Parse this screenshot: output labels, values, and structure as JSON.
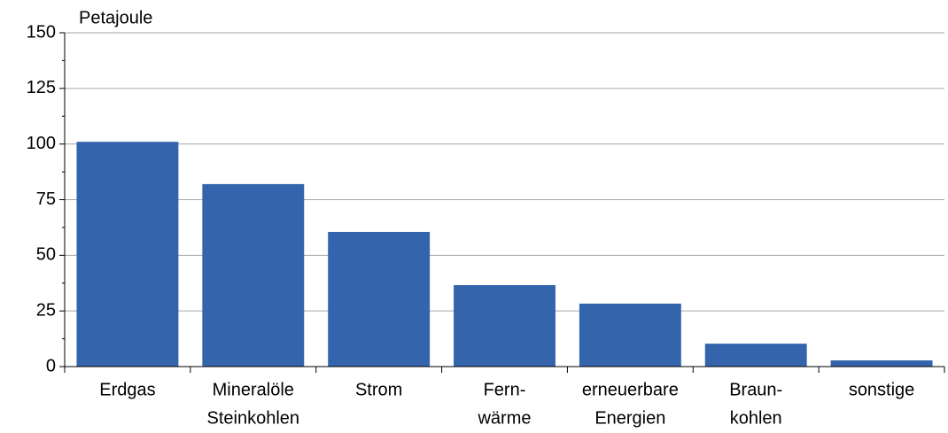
{
  "chart_data": {
    "type": "bar",
    "y_unit": "Petajoule",
    "categories": [
      [
        "Erdgas"
      ],
      [
        "Mineralöle",
        "Steinkohlen"
      ],
      [
        "Strom"
      ],
      [
        "Fern-",
        "wärme"
      ],
      [
        "erneuerbare",
        "Energien"
      ],
      [
        "Braun-",
        "kohlen"
      ],
      [
        "sonstige"
      ]
    ],
    "values": [
      101,
      82,
      60.5,
      36.6,
      28.3,
      10.3,
      2.8
    ],
    "color": "#3465ac",
    "ylim": [
      0,
      150
    ],
    "yticks": [
      0,
      25,
      50,
      75,
      100,
      125,
      150
    ],
    "grid": true
  }
}
